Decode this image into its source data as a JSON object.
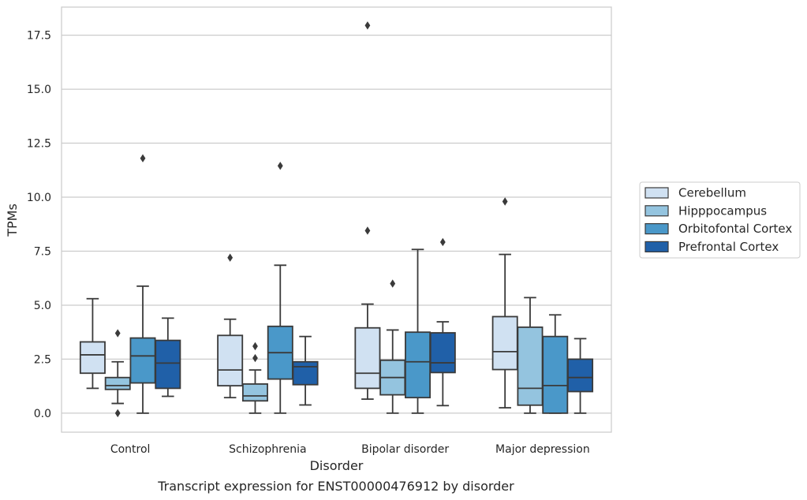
{
  "chart_data": {
    "type": "boxplot",
    "title": "",
    "caption": "Transcript expression for ENST00000476912 by disorder",
    "xlabel": "Disorder",
    "ylabel": "TPMs",
    "ylim": [
      -0.88,
      18.8
    ],
    "yticks": [
      0.0,
      2.5,
      5.0,
      7.5,
      10.0,
      12.5,
      15.0,
      17.5
    ],
    "ytick_labels": [
      "0.0",
      "2.5",
      "5.0",
      "7.5",
      "10.0",
      "12.5",
      "15.0",
      "17.5"
    ],
    "grid": true,
    "legend_position": "right",
    "categories": [
      "Control",
      "Schizophrenia",
      "Bipolar disorder",
      "Major depression"
    ],
    "series": [
      {
        "name": "Cerebellum",
        "color": "#d0e1f2",
        "boxes": [
          {
            "whislo": 1.15,
            "q1": 1.85,
            "med": 2.7,
            "q3": 3.3,
            "whishi": 5.3,
            "fliers": []
          },
          {
            "whislo": 0.72,
            "q1": 1.27,
            "med": 2.0,
            "q3": 3.6,
            "whishi": 4.35,
            "fliers": [
              7.2
            ]
          },
          {
            "whislo": 0.65,
            "q1": 1.15,
            "med": 1.85,
            "q3": 3.95,
            "whishi": 5.05,
            "fliers": [
              8.45,
              17.95
            ]
          },
          {
            "whislo": 0.25,
            "q1": 2.02,
            "med": 2.85,
            "q3": 4.47,
            "whishi": 7.35,
            "fliers": [
              9.8
            ]
          }
        ]
      },
      {
        "name": "Hipppocampus",
        "color": "#94c4df",
        "boxes": [
          {
            "whislo": 0.45,
            "q1": 1.1,
            "med": 1.28,
            "q3": 1.65,
            "whishi": 2.38,
            "fliers": [
              0.0,
              3.7
            ]
          },
          {
            "whislo": 0.0,
            "q1": 0.57,
            "med": 0.8,
            "q3": 1.35,
            "whishi": 2.0,
            "fliers": [
              2.55,
              3.1
            ]
          },
          {
            "whislo": 0.0,
            "q1": 0.85,
            "med": 1.65,
            "q3": 2.45,
            "whishi": 3.85,
            "fliers": [
              6.0
            ]
          },
          {
            "whislo": 0.0,
            "q1": 0.37,
            "med": 1.15,
            "q3": 3.98,
            "whishi": 5.35,
            "fliers": []
          }
        ]
      },
      {
        "name": "Orbitofontal Cortex",
        "color": "#4a98c9",
        "boxes": [
          {
            "whislo": 0.0,
            "q1": 1.4,
            "med": 2.65,
            "q3": 3.48,
            "whishi": 5.88,
            "fliers": [
              11.8
            ]
          },
          {
            "whislo": 0.0,
            "q1": 1.58,
            "med": 2.8,
            "q3": 4.02,
            "whishi": 6.85,
            "fliers": [
              11.45
            ]
          },
          {
            "whislo": 0.0,
            "q1": 0.72,
            "med": 2.38,
            "q3": 3.75,
            "whishi": 7.58,
            "fliers": []
          },
          {
            "whislo": 0.0,
            "q1": 0.0,
            "med": 1.28,
            "q3": 3.55,
            "whishi": 4.55,
            "fliers": []
          }
        ]
      },
      {
        "name": "Prefrontal Cortex",
        "color": "#2060a8",
        "boxes": [
          {
            "whislo": 0.78,
            "q1": 1.15,
            "med": 2.32,
            "q3": 3.37,
            "whishi": 4.4,
            "fliers": []
          },
          {
            "whislo": 0.38,
            "q1": 1.32,
            "med": 2.15,
            "q3": 2.38,
            "whishi": 3.55,
            "fliers": []
          },
          {
            "whislo": 0.35,
            "q1": 1.88,
            "med": 2.33,
            "q3": 3.72,
            "whishi": 4.23,
            "fliers": [
              7.92
            ]
          },
          {
            "whislo": 0.0,
            "q1": 1.0,
            "med": 1.65,
            "q3": 2.5,
            "whishi": 3.45,
            "fliers": []
          }
        ]
      }
    ]
  }
}
